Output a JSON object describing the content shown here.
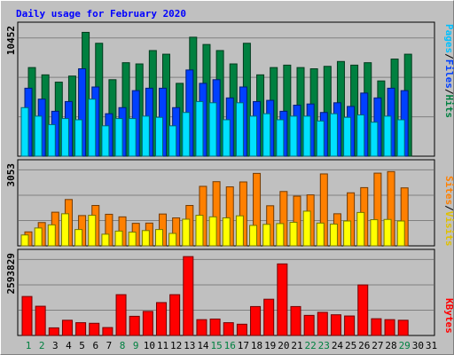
{
  "chart_data": {
    "type": "bar",
    "title": "Daily usage for February 2020",
    "days": [
      "1",
      "2",
      "3",
      "4",
      "5",
      "6",
      "7",
      "8",
      "9",
      "10",
      "11",
      "12",
      "13",
      "14",
      "15",
      "16",
      "17",
      "18",
      "19",
      "20",
      "21",
      "22",
      "23",
      "24",
      "25",
      "26",
      "27",
      "28",
      "29",
      "30",
      "31"
    ],
    "weekend_days": [
      "1",
      "2",
      "8",
      "9",
      "15",
      "16",
      "22",
      "23",
      "29"
    ],
    "panels": [
      {
        "max_label": "10452",
        "ymax": 10452,
        "series": [
          {
            "name": "Hits",
            "color": "#008040",
            "values": [
              7300,
              6700,
              6100,
              6600,
              10200,
              9300,
              6300,
              7700,
              7600,
              8700,
              8400,
              6000,
              9800,
              9200,
              8700,
              7600,
              9300,
              6700,
              7300,
              7500,
              7300,
              7200,
              7400,
              7800,
              7500,
              7700,
              6200,
              8000,
              8400,
              0,
              0
            ]
          },
          {
            "name": "Files",
            "color": "#0040ff",
            "values": [
              5600,
              4700,
              3700,
              4500,
              7200,
              5700,
              3500,
              4000,
              5400,
              5600,
              5600,
              4000,
              7100,
              6000,
              6300,
              4800,
              5700,
              4500,
              4600,
              3700,
              4200,
              4300,
              3600,
              4400,
              4100,
              5200,
              4800,
              5600,
              5400,
              0,
              0
            ]
          },
          {
            "name": "Pages",
            "color": "#00e0ff",
            "values": [
              4000,
              3300,
              2600,
              3100,
              3000,
              4700,
              2500,
              3100,
              3100,
              3300,
              3200,
              2500,
              3600,
              4500,
              4400,
              3000,
              4400,
              3300,
              3500,
              3000,
              3300,
              3300,
              2900,
              3500,
              3200,
              3400,
              2800,
              3300,
              3000,
              0,
              0
            ]
          }
        ]
      },
      {
        "max_label": "3053",
        "ymax": 3053,
        "series": [
          {
            "name": "Sites",
            "color": "#ff8000",
            "values": [
              540,
              900,
              1300,
              1790,
              1170,
              1560,
              1220,
              1120,
              870,
              880,
              1230,
              1080,
              1560,
              2300,
              2480,
              2280,
              2470,
              2800,
              1550,
              2100,
              1920,
              1970,
              2780,
              1240,
              2050,
              2250,
              2810,
              2870,
              2240,
              0,
              0
            ]
          },
          {
            "name": "Visits",
            "color": "#ffff00",
            "values": [
              420,
              690,
              810,
              1240,
              630,
              1180,
              450,
              570,
              530,
              590,
              630,
              480,
              1030,
              1180,
              1120,
              1080,
              1160,
              790,
              830,
              860,
              910,
              1340,
              880,
              840,
              960,
              1290,
              1010,
              1020,
              960,
              0,
              0
            ]
          }
        ]
      },
      {
        "max_label": "2593829",
        "ymax": 2593829,
        "series": [
          {
            "name": "KBytes",
            "color": "#ff0000",
            "values": [
              1280000,
              960000,
              250000,
              500000,
              420000,
              400000,
              260000,
              1340000,
              630000,
              790000,
              1080000,
              1340000,
              2590000,
              520000,
              540000,
              420000,
              370000,
              950000,
              1190000,
              2350000,
              950000,
              660000,
              760000,
              680000,
              640000,
              1660000,
              550000,
              520000,
              500000,
              0,
              0
            ]
          }
        ]
      }
    ],
    "ylabel_right": [
      {
        "text": "Pages",
        "color": "#00c0ff"
      },
      {
        "text": "/",
        "color": "#000000"
      },
      {
        "text": "Files",
        "color": "#0040ff"
      },
      {
        "text": "/",
        "color": "#000000"
      },
      {
        "text": "Hits",
        "color": "#008040"
      },
      {
        "text": "Sites",
        "color": "#ff8000"
      },
      {
        "text": "/",
        "color": "#000000"
      },
      {
        "text": "Visits",
        "color": "#e0c000"
      },
      {
        "text": "KBytes",
        "color": "#ff0000"
      }
    ]
  }
}
